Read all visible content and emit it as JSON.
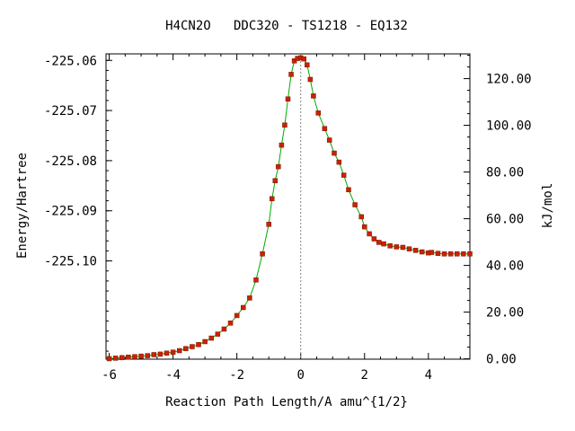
{
  "chart_data": {
    "type": "scatter",
    "title": "H4CN2O   DDC320 - TS1218 - EQ132",
    "xlabel": "Reaction Path Length/A amu^{1/2}",
    "ylabel": "Energy/Hartree",
    "y2label": "kJ/mol",
    "xlim": [
      -6.1,
      5.3
    ],
    "ylim": [
      -225.1196,
      -225.0587
    ],
    "y2lim": [
      -0.15,
      130.6
    ],
    "x_ticks": [
      -6,
      -4,
      -2,
      0,
      2,
      4
    ],
    "x_tick_labels": [
      "-6",
      "-4",
      "-2",
      "0",
      "2",
      "4"
    ],
    "y_ticks": [
      -225.06,
      -225.07,
      -225.08,
      -225.09,
      -225.1
    ],
    "y_tick_labels": [
      "-225.06",
      "-225.07",
      "-225.08",
      "-225.09",
      "-225.10"
    ],
    "y2_ticks": [
      0,
      20,
      40,
      60,
      80,
      100,
      120
    ],
    "y2_tick_labels": [
      "0.00",
      "20.00",
      "40.00",
      "60.00",
      "80.00",
      "100.00",
      "120.00"
    ],
    "ts_x": 0,
    "grid": false,
    "colors": {
      "points": "#cc2200",
      "line": "#00aa00",
      "ts_line": "#888888",
      "axes": "#000000"
    },
    "series": [
      {
        "points": [
          [
            -6.0,
            -225.1195
          ],
          [
            -5.8,
            -225.1194
          ],
          [
            -5.6,
            -225.1193
          ],
          [
            -5.4,
            -225.1192
          ],
          [
            -5.2,
            -225.1191
          ],
          [
            -5.0,
            -225.119
          ],
          [
            -4.8,
            -225.1189
          ],
          [
            -4.6,
            -225.1187
          ],
          [
            -4.4,
            -225.1186
          ],
          [
            -4.2,
            -225.1184
          ],
          [
            -4.0,
            -225.1182
          ],
          [
            -3.8,
            -225.1179
          ],
          [
            -3.6,
            -225.1175
          ],
          [
            -3.4,
            -225.1171
          ],
          [
            -3.2,
            -225.1167
          ],
          [
            -3.0,
            -225.1161
          ],
          [
            -2.8,
            -225.1154
          ],
          [
            -2.6,
            -225.1146
          ],
          [
            -2.4,
            -225.1136
          ],
          [
            -2.2,
            -225.1124
          ],
          [
            -2.0,
            -225.1109
          ],
          [
            -1.8,
            -225.1093
          ],
          [
            -1.6,
            -225.1074
          ],
          [
            -1.4,
            -225.1038
          ],
          [
            -1.2,
            -225.0986
          ],
          [
            -1.0,
            -225.0927
          ],
          [
            -0.9,
            -225.0876
          ],
          [
            -0.8,
            -225.084
          ],
          [
            -0.7,
            -225.0812
          ],
          [
            -0.6,
            -225.0769
          ],
          [
            -0.5,
            -225.0729
          ],
          [
            -0.4,
            -225.0677
          ],
          [
            -0.3,
            -225.0628
          ],
          [
            -0.2,
            -225.0601
          ],
          [
            -0.1,
            -225.0596
          ],
          [
            0.0,
            -225.0595
          ],
          [
            0.1,
            -225.0597
          ],
          [
            0.2,
            -225.0609
          ],
          [
            0.3,
            -225.0638
          ],
          [
            0.4,
            -225.0671
          ],
          [
            0.55,
            -225.0705
          ],
          [
            0.75,
            -225.0736
          ],
          [
            0.9,
            -225.0759
          ],
          [
            1.05,
            -225.0785
          ],
          [
            1.2,
            -225.0803
          ],
          [
            1.35,
            -225.0829
          ],
          [
            1.5,
            -225.0858
          ],
          [
            1.7,
            -225.0888
          ],
          [
            1.9,
            -225.0912
          ],
          [
            2.0,
            -225.0932
          ],
          [
            2.15,
            -225.0946
          ],
          [
            2.3,
            -225.0956
          ],
          [
            2.45,
            -225.0963
          ],
          [
            2.6,
            -225.0966
          ],
          [
            2.8,
            -225.097
          ],
          [
            3.0,
            -225.0972
          ],
          [
            3.2,
            -225.0973
          ],
          [
            3.4,
            -225.0976
          ],
          [
            3.6,
            -225.0979
          ],
          [
            3.8,
            -225.0982
          ],
          [
            4.0,
            -225.0984
          ],
          [
            4.1,
            -225.0983
          ],
          [
            4.3,
            -225.0985
          ],
          [
            4.5,
            -225.0986
          ],
          [
            4.7,
            -225.0986
          ],
          [
            4.9,
            -225.0986
          ],
          [
            5.1,
            -225.0986
          ],
          [
            5.3,
            -225.0986
          ]
        ]
      }
    ]
  }
}
